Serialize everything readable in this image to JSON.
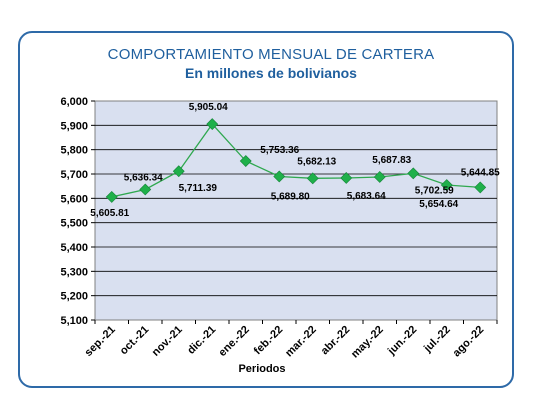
{
  "chart_data": {
    "type": "line",
    "title": "COMPORTAMIENTO  MENSUAL DE CARTERA",
    "subtitle": "En millones de bolivianos",
    "xlabel": "Periodos",
    "ylabel": "",
    "categories": [
      "sep.-21",
      "oct.-21",
      "nov.-21",
      "dic.-21",
      "ene.-22",
      "feb.-22",
      "mar.-22",
      "abr.-22",
      "may.-22",
      "jun.-22",
      "jul.-22",
      "ago.-22"
    ],
    "series": [
      {
        "values": [
          5605.81,
          5636.34,
          5711.39,
          5905.04,
          5753.36,
          5689.8,
          5682.13,
          5683.64,
          5687.83,
          5702.59,
          5654.64,
          5644.85
        ]
      }
    ],
    "data_labels": [
      "5,605.81",
      "5,636.34",
      "5,711.39",
      "5,905.04",
      "5,753.36",
      "5,689.80",
      "5,682.13",
      "5,683.64",
      "5,687.83",
      "5,702.59",
      "5,654.64",
      "5,644.85"
    ],
    "ylim": [
      5100,
      6000
    ],
    "yticks": [
      "5,100",
      "5,200",
      "5,300",
      "5,400",
      "5,500",
      "5,600",
      "5,700",
      "5,800",
      "5,900",
      "6,000"
    ],
    "grid": true,
    "legend": "none",
    "colors": {
      "line": "#2fa84f",
      "marker": "#1fb04a",
      "plot_bg": "#d9e0f0",
      "border": "#2e6aa8",
      "title": "#1f5f9e"
    }
  }
}
